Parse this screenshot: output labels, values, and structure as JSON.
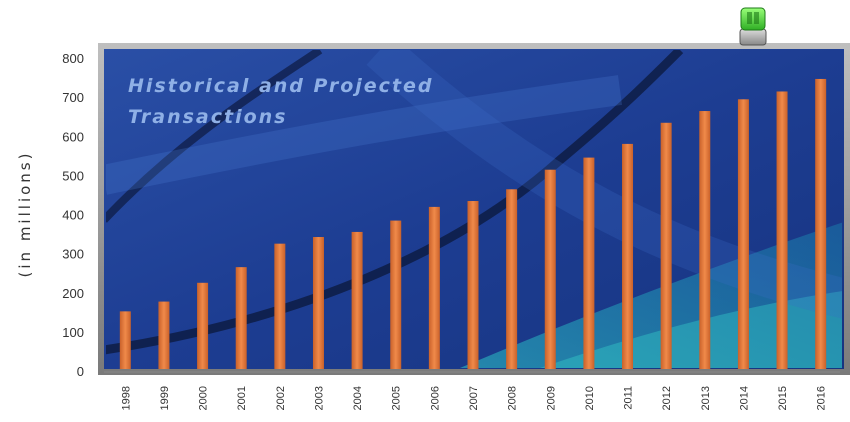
{
  "chart_data": {
    "type": "bar",
    "title_lines": [
      "Historical and Projected",
      "Transactions"
    ],
    "ylabel": "(in millions)",
    "xlabel": "",
    "ylim": [
      0,
      800
    ],
    "yticks": [
      0,
      100,
      200,
      300,
      400,
      500,
      600,
      700,
      800
    ],
    "categories": [
      "1998",
      "1999",
      "2000",
      "2001",
      "2002",
      "2003",
      "2004",
      "2005",
      "2006",
      "2007",
      "2008",
      "2009",
      "2010",
      "2011",
      "2012",
      "2013",
      "2014",
      "2015",
      "2016"
    ],
    "values": [
      155,
      180,
      228,
      268,
      328,
      345,
      358,
      387,
      422,
      437,
      467,
      517,
      548,
      583,
      637,
      667,
      697,
      717,
      749
    ],
    "bar_color": "#e07a3f",
    "background_color": "#1f3f8f",
    "grid": false
  }
}
